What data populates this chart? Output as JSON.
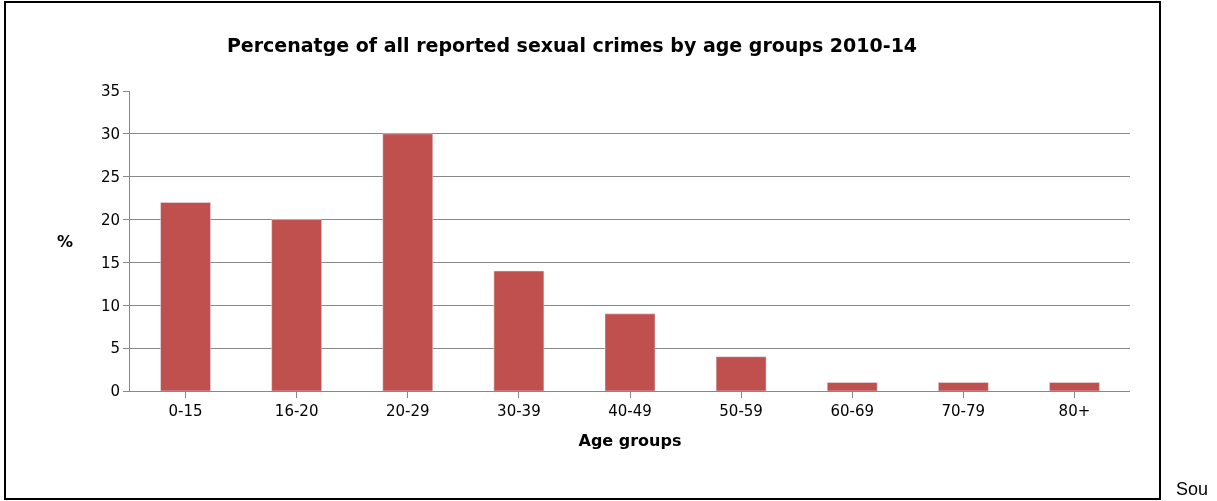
{
  "chart_data": {
    "type": "bar",
    "title": "Percenatge of all reported sexual crimes by age groups 2010-14",
    "xlabel": "Age groups",
    "ylabel": "%",
    "categories": [
      "0-15",
      "16-20",
      "20-29",
      "30-39",
      "40-49",
      "50-59",
      "60-69",
      "70-79",
      "80+"
    ],
    "values": [
      22,
      20,
      30,
      14,
      9,
      4,
      1,
      1,
      1
    ],
    "color": "#c0504d",
    "ylim": [
      0,
      35
    ],
    "yticks": [
      0,
      5,
      10,
      15,
      20,
      25,
      30,
      35
    ],
    "grid": "y",
    "annotations": [
      "Sou"
    ]
  }
}
